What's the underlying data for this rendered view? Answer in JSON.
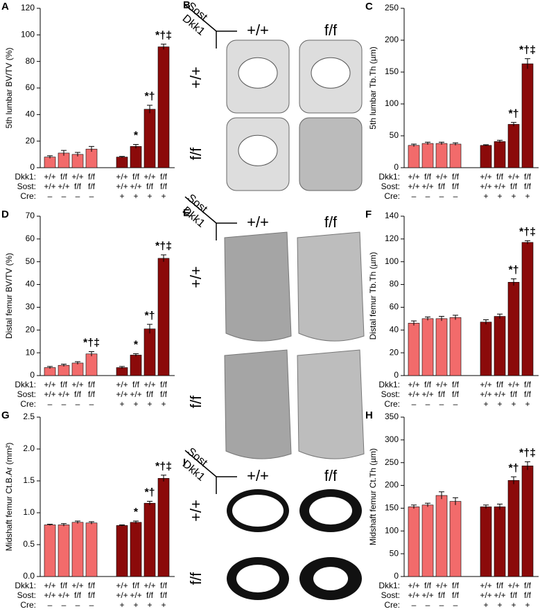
{
  "chart_data": [
    {
      "type": "bar",
      "panel": "A",
      "y_label": "5th lumbar BV/TV (%)",
      "ylim": [
        0,
        120
      ],
      "yticks": [
        0,
        20,
        40,
        60,
        80,
        100,
        120
      ],
      "group_rows": [
        {
          "name": "Dkk1:",
          "labels": [
            "+/+",
            "f/f",
            "+/+",
            "f/f",
            "+/+",
            "f/f",
            "+/+",
            "f/f"
          ]
        },
        {
          "name": "Sost:",
          "labels": [
            "+/+",
            "+/+",
            "f/f",
            "f/f",
            "+/+",
            "+/+",
            "f/f",
            "f/f"
          ]
        },
        {
          "name": "Cre:",
          "labels": [
            "–",
            "–",
            "–",
            "–",
            "+",
            "+",
            "+",
            "+"
          ]
        }
      ],
      "values": [
        8,
        11,
        10,
        14,
        8,
        16,
        44,
        91
      ],
      "errors": [
        1,
        2,
        1.5,
        2,
        0.5,
        1.5,
        3,
        2
      ],
      "colors": [
        "#f26b6b",
        "#f26b6b",
        "#f26b6b",
        "#f26b6b",
        "#8b0a0a",
        "#8b0a0a",
        "#8b0a0a",
        "#8b0a0a"
      ],
      "annotations": [
        null,
        null,
        null,
        null,
        null,
        "*",
        "*†",
        "*†‡"
      ]
    },
    {
      "type": "bar",
      "panel": "C",
      "y_label": "5th lumbar Tb.Th (µm)",
      "ylim": [
        0,
        250
      ],
      "yticks": [
        0,
        50,
        100,
        150,
        200,
        250
      ],
      "group_rows": [
        {
          "name": "Dkk1:",
          "labels": [
            "+/+",
            "f/f",
            "+/+",
            "f/f",
            "+/+",
            "f/f",
            "+/+",
            "f/f"
          ]
        },
        {
          "name": "Sost:",
          "labels": [
            "+/+",
            "+/+",
            "f/f",
            "f/f",
            "+/+",
            "+/+",
            "f/f",
            "f/f"
          ]
        },
        {
          "name": "Cre:",
          "labels": [
            "–",
            "–",
            "–",
            "–",
            "+",
            "+",
            "+",
            "+"
          ]
        }
      ],
      "values": [
        35,
        38,
        38,
        37,
        35,
        41,
        68,
        163
      ],
      "errors": [
        2,
        2,
        2,
        2,
        1,
        2,
        3,
        8
      ],
      "colors": [
        "#f26b6b",
        "#f26b6b",
        "#f26b6b",
        "#f26b6b",
        "#8b0a0a",
        "#8b0a0a",
        "#8b0a0a",
        "#8b0a0a"
      ],
      "annotations": [
        null,
        null,
        null,
        null,
        null,
        null,
        "*†",
        "*†‡"
      ]
    },
    {
      "type": "bar",
      "panel": "D",
      "y_label": "Distal femur BV/TV (%)",
      "ylim": [
        0,
        70
      ],
      "yticks": [
        0,
        10,
        20,
        30,
        40,
        50,
        60,
        70
      ],
      "group_rows": [
        {
          "name": "Dkk1:",
          "labels": [
            "+/+",
            "f/f",
            "+/+",
            "f/f",
            "+/+",
            "f/f",
            "+/+",
            "f/f"
          ]
        },
        {
          "name": "Sost:",
          "labels": [
            "+/+",
            "+/+",
            "f/f",
            "f/f",
            "+/+",
            "+/+",
            "f/f",
            "f/f"
          ]
        },
        {
          "name": "Cre:",
          "labels": [
            "–",
            "–",
            "–",
            "–",
            "+",
            "+",
            "+",
            "+"
          ]
        }
      ],
      "values": [
        3.5,
        4.5,
        5.5,
        9.5,
        3.5,
        9,
        20.5,
        51.5
      ],
      "errors": [
        0.5,
        0.5,
        0.6,
        1,
        0.5,
        0.6,
        2,
        1.5
      ],
      "colors": [
        "#f26b6b",
        "#f26b6b",
        "#f26b6b",
        "#f26b6b",
        "#8b0a0a",
        "#8b0a0a",
        "#8b0a0a",
        "#8b0a0a"
      ],
      "annotations": [
        null,
        null,
        null,
        "*†‡",
        null,
        "*",
        "*†",
        "*†‡"
      ]
    },
    {
      "type": "bar",
      "panel": "F",
      "y_label": "Distal femur Tb.Th (µm)",
      "ylim": [
        0,
        140
      ],
      "yticks": [
        0,
        20,
        40,
        60,
        80,
        100,
        120,
        140
      ],
      "group_rows": [
        {
          "name": "Dkk1:",
          "labels": [
            "+/+",
            "f/f",
            "+/+",
            "f/f",
            "+/+",
            "f/f",
            "+/+",
            "f/f"
          ]
        },
        {
          "name": "Sost:",
          "labels": [
            "+/+",
            "+/+",
            "f/f",
            "f/f",
            "+/+",
            "+/+",
            "f/f",
            "f/f"
          ]
        },
        {
          "name": "Cre:",
          "labels": [
            "–",
            "–",
            "–",
            "–",
            "+",
            "+",
            "+",
            "+"
          ]
        }
      ],
      "values": [
        46,
        50,
        50,
        51,
        47,
        52,
        82,
        117
      ],
      "errors": [
        2,
        1.5,
        2,
        2,
        2,
        2,
        3,
        1.5
      ],
      "colors": [
        "#f26b6b",
        "#f26b6b",
        "#f26b6b",
        "#f26b6b",
        "#8b0a0a",
        "#8b0a0a",
        "#8b0a0a",
        "#8b0a0a"
      ],
      "annotations": [
        null,
        null,
        null,
        null,
        null,
        null,
        "*†",
        "*†‡"
      ]
    },
    {
      "type": "bar",
      "panel": "G",
      "y_label": "Midshaft femur Ct.B.Ar (mm²)",
      "ylim": [
        0,
        2.5
      ],
      "yticks": [
        {
          "value": 0,
          "label": "0.0"
        },
        0.5,
        {
          "value": 1,
          "label": "1.0"
        },
        1.5,
        {
          "value": 2,
          "label": "2.0"
        },
        2.5
      ],
      "group_rows": [
        {
          "name": "Dkk1:",
          "labels": [
            "+/+",
            "f/f",
            "+/+",
            "f/f",
            "+/+",
            "f/f",
            "+/+",
            "f/f"
          ]
        },
        {
          "name": "Sost:",
          "labels": [
            "+/+",
            "+/+",
            "f/f",
            "f/f",
            "+/+",
            "+/+",
            "f/f",
            "f/f"
          ]
        },
        {
          "name": "Cre:",
          "labels": [
            "–",
            "–",
            "–",
            "–",
            "+",
            "+",
            "+",
            "+"
          ]
        }
      ],
      "values": [
        0.81,
        0.81,
        0.85,
        0.84,
        0.8,
        0.85,
        1.15,
        1.54
      ],
      "errors": [
        0.01,
        0.02,
        0.02,
        0.02,
        0.01,
        0.02,
        0.03,
        0.05
      ],
      "colors": [
        "#f26b6b",
        "#f26b6b",
        "#f26b6b",
        "#f26b6b",
        "#8b0a0a",
        "#8b0a0a",
        "#8b0a0a",
        "#8b0a0a"
      ],
      "annotations": [
        null,
        null,
        null,
        null,
        null,
        "*",
        "*†",
        "*†‡"
      ]
    },
    {
      "type": "bar",
      "panel": "H",
      "y_label": "Midshaft femur Ct.Th (µm)",
      "ylim": [
        0,
        350
      ],
      "yticks": [
        0,
        50,
        100,
        150,
        200,
        250,
        300,
        350
      ],
      "group_rows": [
        {
          "name": "Dkk1:",
          "labels": [
            "+/+",
            "f/f",
            "+/+",
            "f/f",
            "+/+",
            "f/f",
            "+/+",
            "f/f"
          ]
        },
        {
          "name": "Sost:",
          "labels": [
            "+/+",
            "+/+",
            "f/f",
            "f/f",
            "+/+",
            "+/+",
            "f/f",
            "f/f"
          ]
        },
        {
          "name": "Cre:",
          "labels": [
            "–",
            "–",
            "–",
            "–",
            "+",
            "+",
            "+",
            "+"
          ]
        }
      ],
      "values": [
        153,
        157,
        178,
        165,
        153,
        153,
        211,
        243
      ],
      "errors": [
        4,
        4,
        8,
        8,
        4,
        6,
        8,
        9
      ],
      "colors": [
        "#f26b6b",
        "#f26b6b",
        "#f26b6b",
        "#f26b6b",
        "#8b0a0a",
        "#8b0a0a",
        "#8b0a0a",
        "#8b0a0a"
      ],
      "annotations": [
        null,
        null,
        null,
        null,
        null,
        null,
        "*†",
        "*†‡"
      ]
    }
  ],
  "image_panels": [
    {
      "panel": "B",
      "col_header": "Sost",
      "row_header": "Dkk1",
      "columns": [
        "+/+",
        "f/f"
      ],
      "rows": [
        "+/+",
        "f/f"
      ]
    },
    {
      "panel": "E",
      "col_header": "Sost",
      "row_header": "Dkk1",
      "columns": [
        "+/+",
        "f/f"
      ],
      "rows": [
        "+/+",
        "f/f"
      ]
    },
    {
      "panel": "I",
      "col_header": "Sost",
      "row_header": "Dkk1",
      "columns": [
        "+/+",
        "f/f"
      ],
      "rows": [
        "+/+",
        "f/f"
      ]
    }
  ]
}
